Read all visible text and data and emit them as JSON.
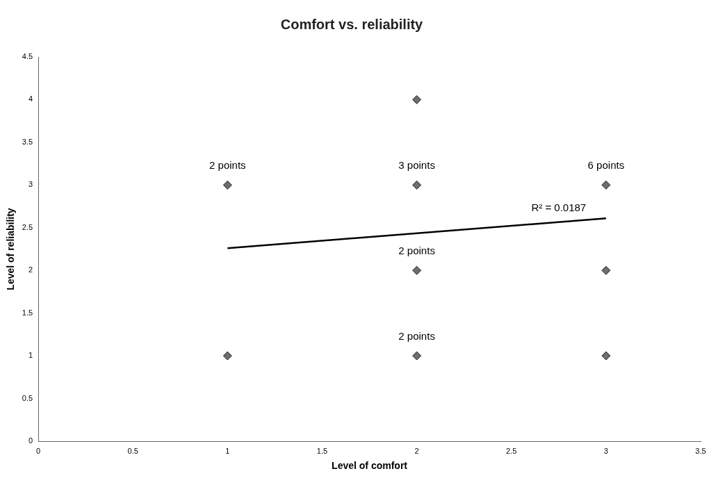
{
  "chart_data": {
    "type": "scatter",
    "title": "Comfort vs. reliability",
    "xlabel": "Level of comfort",
    "ylabel": "Level of reliability",
    "xlim": [
      0,
      3.5
    ],
    "xticks": [
      0,
      0.5,
      1,
      1.5,
      2,
      2.5,
      3,
      3.5
    ],
    "ylim": [
      0,
      4.5
    ],
    "yticks": [
      0,
      0.5,
      1,
      1.5,
      2,
      2.5,
      3,
      3.5,
      4,
      4.5
    ],
    "grid": false,
    "legend": false,
    "marker": "diamond",
    "series": [
      {
        "type": "scatter",
        "color": "#6e6e6e",
        "x": [
          1,
          1,
          2,
          2,
          2,
          2,
          3,
          3,
          3
        ],
        "values": [
          3,
          1,
          4,
          3,
          2,
          1,
          3,
          2,
          1
        ]
      },
      {
        "type": "line",
        "color": "#000000",
        "marker": "none",
        "x": [
          1,
          3
        ],
        "values": [
          2.26,
          2.61
        ]
      }
    ],
    "annotations": [
      {
        "text": "2 points",
        "x": 1,
        "y": 3
      },
      {
        "text": "3 points",
        "x": 2,
        "y": 3
      },
      {
        "text": "6 points",
        "x": 3,
        "y": 3
      },
      {
        "text": "2 points",
        "x": 2,
        "y": 2
      },
      {
        "text": "2 points",
        "x": 2,
        "y": 1
      },
      {
        "text": "R² = 0.0187",
        "x": 2.75,
        "y": 2.62
      }
    ]
  }
}
